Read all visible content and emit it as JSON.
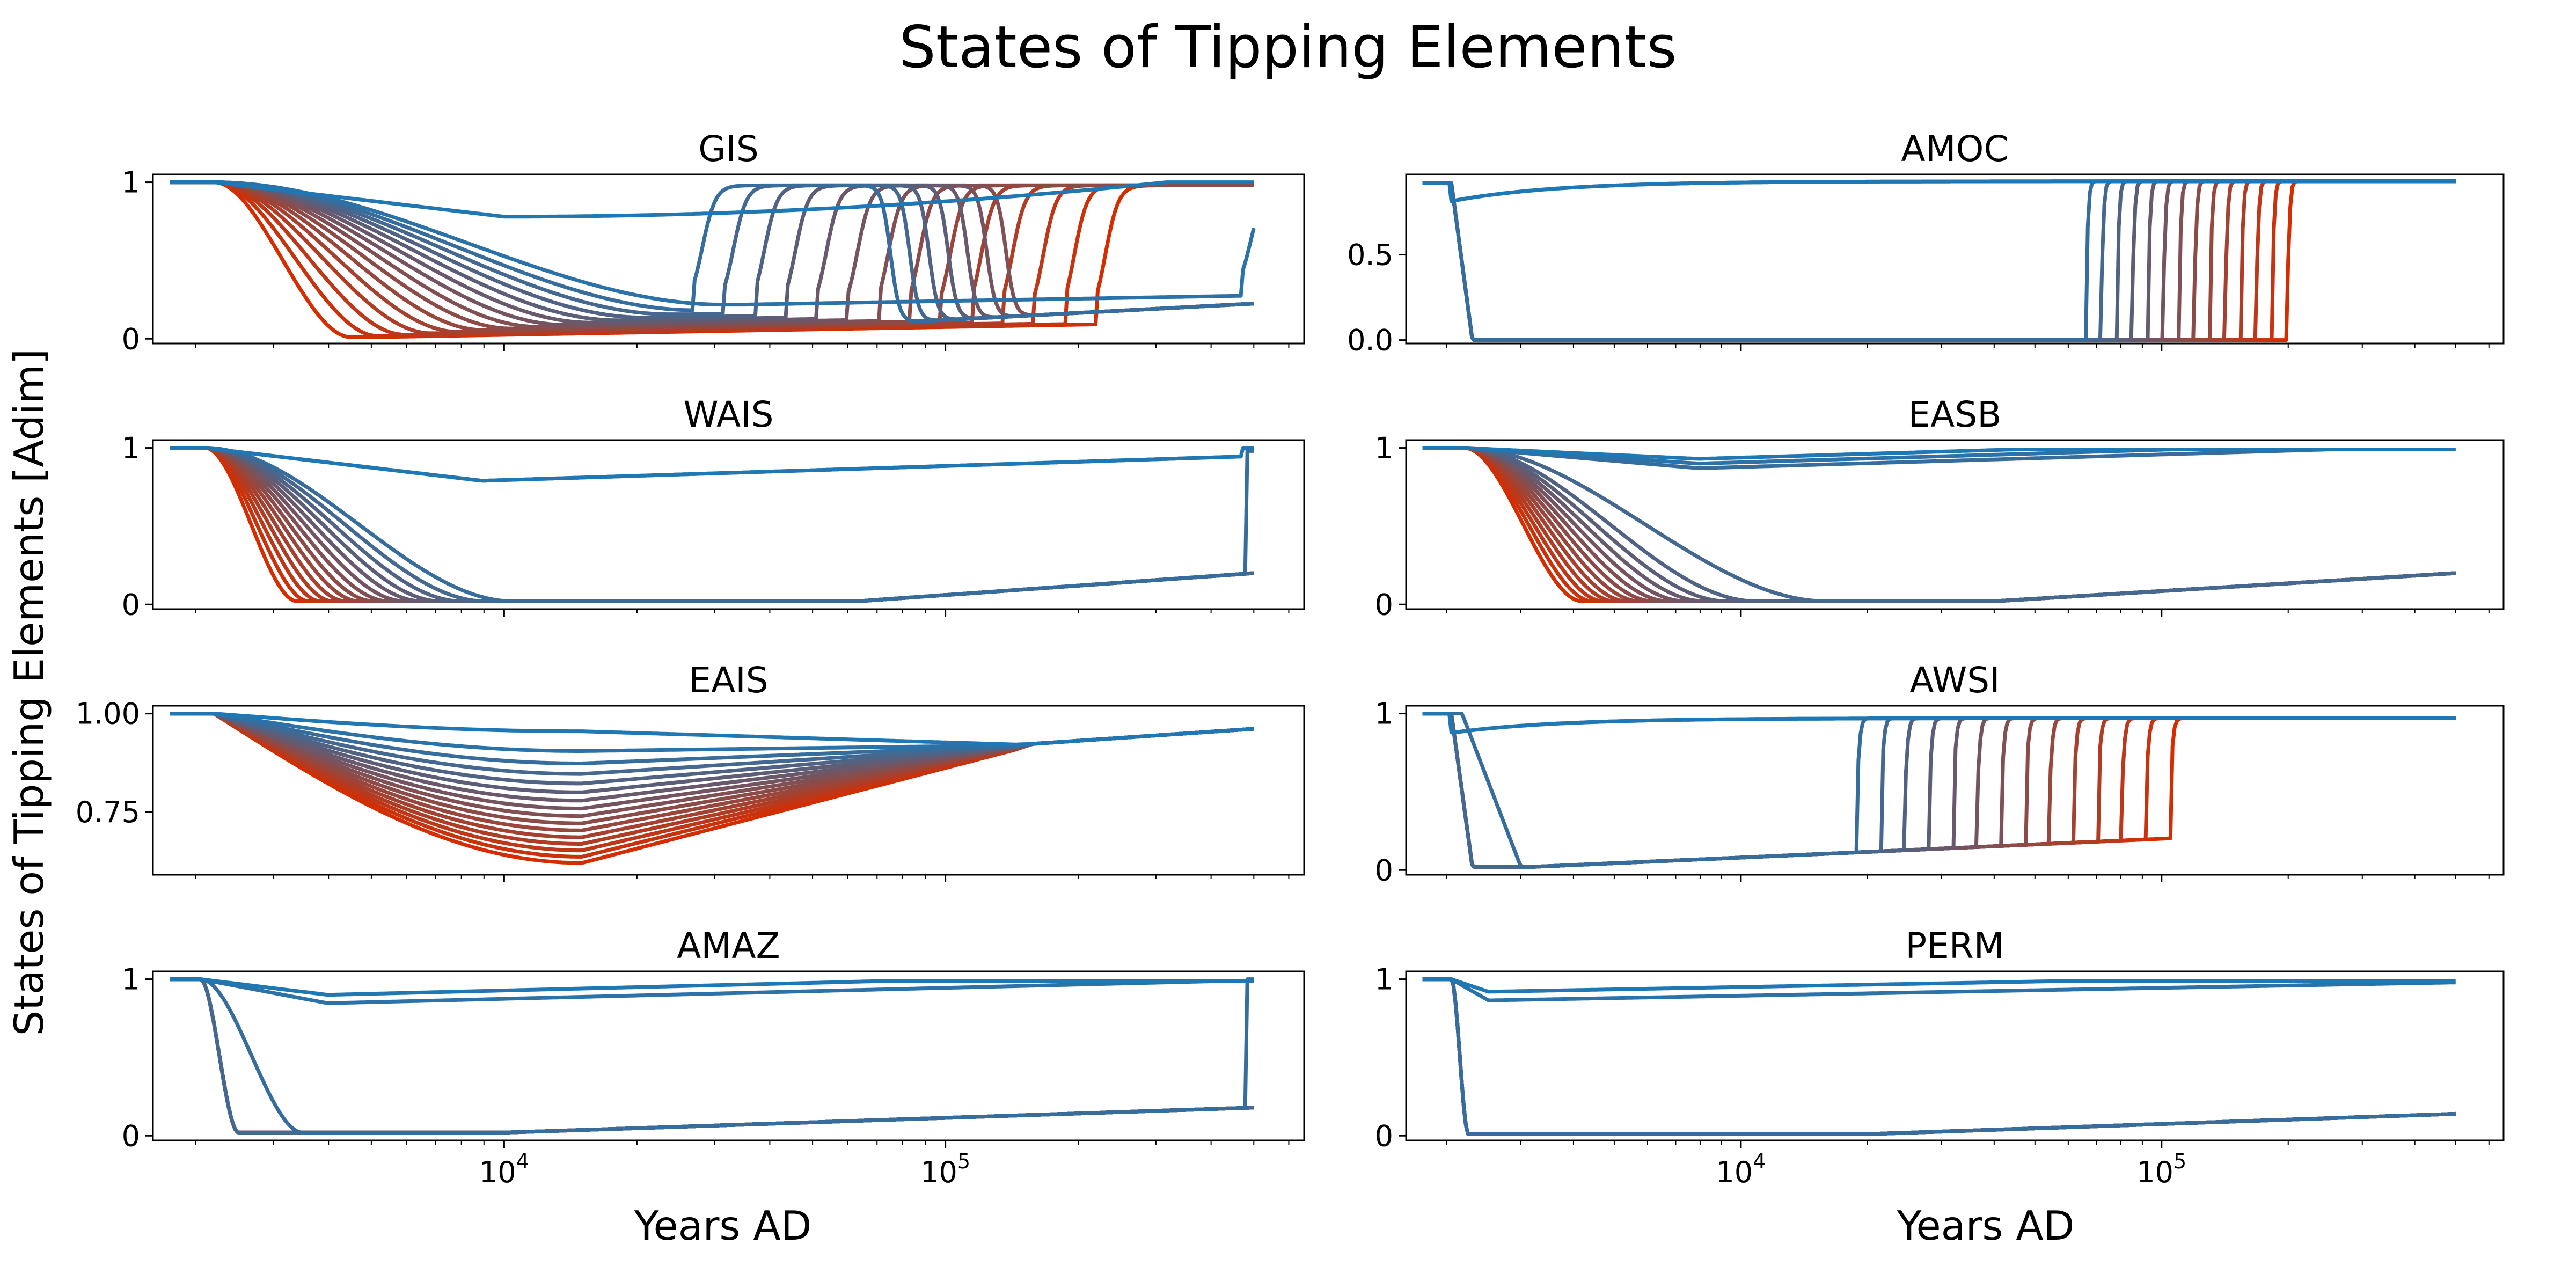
{
  "figure": {
    "title": "States of Tipping Elements",
    "ylabel": "States of Tipping Elements [Adim]",
    "xlabel": "Years AD"
  },
  "colors": {
    "start": "#1f77b4",
    "end": "#d62d00"
  },
  "chart_data": [
    {
      "type": "line",
      "title": "GIS",
      "xscale": "log",
      "xlim": [
        1600,
        650000
      ],
      "ylim": [
        -0.03,
        1.05
      ],
      "yticks": [
        0,
        1
      ],
      "ytick_labels": [
        "0",
        "1"
      ],
      "xticks_major": [
        10000,
        100000
      ],
      "xtick_labels": [
        "10^4",
        "10^5"
      ],
      "series_count": 16,
      "params": {
        "start": 1750,
        "drop_begin": 2200,
        "min_first": 0.78,
        "trough_first": 40000,
        "trough_last": 5000,
        "tip_first": 0,
        "tip_last": 220000,
        "recover_level": 1.0,
        "late_end": 0.25
      }
    },
    {
      "type": "line",
      "title": "AMOC",
      "xscale": "log",
      "xlim": [
        1600,
        650000
      ],
      "ylim": [
        -0.02,
        0.97
      ],
      "yticks": [
        0,
        0.5
      ],
      "ytick_labels": [
        "0.0",
        "0.5"
      ],
      "xticks_major": [
        10000,
        100000
      ],
      "xtick_labels": [
        "10^4",
        "10^5"
      ],
      "series_count": 16,
      "params": {
        "start": 1750,
        "drop_begin": 2050,
        "drop_end": 2300,
        "high_level": 0.93,
        "tip_first": 62000,
        "tip_last": 200000
      }
    },
    {
      "type": "line",
      "title": "WAIS",
      "xscale": "log",
      "xlim": [
        1600,
        650000
      ],
      "ylim": [
        -0.03,
        1.05
      ],
      "yticks": [
        0,
        1
      ],
      "ytick_labels": [
        "0",
        "1"
      ],
      "xticks_major": [
        10000,
        100000
      ],
      "xtick_labels": [
        "10^4",
        "10^5"
      ],
      "series_count": 16,
      "params": {
        "start": 1750,
        "drop_begin": 2100,
        "min_first": 0.79,
        "low_end_first": 20000,
        "low_end_last": 3400,
        "late_end": 0.2
      }
    },
    {
      "type": "line",
      "title": "EASB",
      "xscale": "log",
      "xlim": [
        1600,
        650000
      ],
      "ylim": [
        -0.03,
        1.05
      ],
      "yticks": [
        0,
        1
      ],
      "ytick_labels": [
        "0",
        "1"
      ],
      "xticks_major": [
        10000,
        100000
      ],
      "xtick_labels": [
        "10^4",
        "10^5"
      ],
      "series_count": 16,
      "params": {
        "start": 1750,
        "drop_begin": 2200,
        "min_first": 0.84,
        "low_end_first": 16000,
        "low_end_last": 4200,
        "late_end": 0.2
      }
    },
    {
      "type": "line",
      "title": "EAIS",
      "xscale": "log",
      "xlim": [
        1600,
        650000
      ],
      "ylim": [
        0.59,
        1.02
      ],
      "yticks": [
        0.75,
        1.0
      ],
      "ytick_labels": [
        "0.75",
        "1.00"
      ],
      "xticks_major": [
        10000,
        100000
      ],
      "xtick_labels": [
        "10^4",
        "10^5"
      ],
      "series_count": 16,
      "params": {
        "start": 1750,
        "drop_begin": 2200,
        "min_first": 0.955,
        "min_last": 0.62,
        "trough": 15000,
        "end_level": 0.97
      }
    },
    {
      "type": "line",
      "title": "AWSI",
      "xscale": "log",
      "xlim": [
        1600,
        650000
      ],
      "ylim": [
        -0.03,
        1.05
      ],
      "yticks": [
        0,
        1
      ],
      "ytick_labels": [
        "0",
        "1"
      ],
      "xticks_major": [
        10000,
        100000
      ],
      "xtick_labels": [
        "10^4",
        "10^5"
      ],
      "series_count": 16,
      "params": {
        "start": 1750,
        "drop_begin": 2050,
        "drop_end": 2300,
        "high_level": 0.97,
        "tip_first": 17000,
        "tip_last": 105000
      }
    },
    {
      "type": "line",
      "title": "AMAZ",
      "xscale": "log",
      "xlim": [
        1600,
        650000
      ],
      "ylim": [
        -0.03,
        1.05
      ],
      "yticks": [
        0,
        1
      ],
      "ytick_labels": [
        "0",
        "1"
      ],
      "xticks_major": [
        10000,
        100000
      ],
      "xtick_labels": [
        "10^4",
        "10^5"
      ],
      "series_count": 16,
      "params": {
        "start": 1750,
        "drop_begin": 2050,
        "drop_end": 2500,
        "high_level": 0.99,
        "late_end": 0.18
      }
    },
    {
      "type": "line",
      "title": "PERM",
      "xscale": "log",
      "xlim": [
        1600,
        650000
      ],
      "ylim": [
        -0.03,
        1.05
      ],
      "yticks": [
        0,
        1
      ],
      "ytick_labels": [
        "0",
        "1"
      ],
      "xticks_major": [
        10000,
        100000
      ],
      "xtick_labels": [
        "10^4",
        "10^5"
      ],
      "series_count": 16,
      "params": {
        "start": 1750,
        "drop_begin": 2050,
        "drop_end": 2250,
        "high_level": 0.99,
        "late_end": 0.14
      }
    }
  ]
}
